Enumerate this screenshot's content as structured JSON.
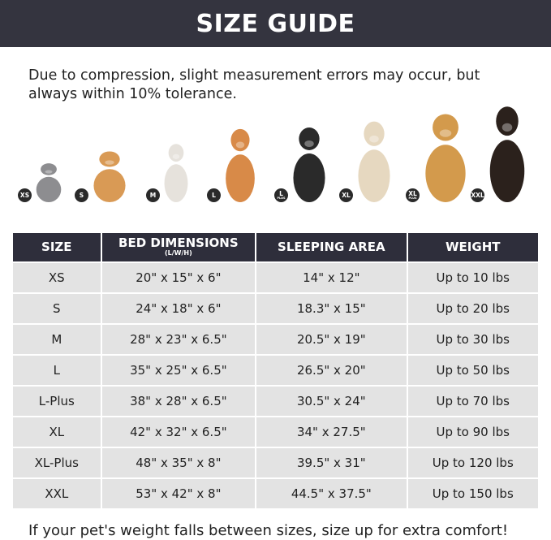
{
  "title": "SIZE GUIDE",
  "note": "Due to compression, slight measurement errors may occur, but always within 10% tolerance.",
  "pets": [
    {
      "badge": "XS",
      "sub": "",
      "animal": "cat",
      "color": "#8d8d90"
    },
    {
      "badge": "S",
      "sub": "",
      "animal": "pomeranian",
      "color": "#d99a55"
    },
    {
      "badge": "M",
      "sub": "",
      "animal": "french-bulldog",
      "color": "#e6e2dc"
    },
    {
      "badge": "L",
      "sub": "",
      "animal": "shiba-inu",
      "color": "#d88a48"
    },
    {
      "badge": "L",
      "sub": "PLUS",
      "animal": "border-collie",
      "color": "#2a2a2a"
    },
    {
      "badge": "XL",
      "sub": "",
      "animal": "labrador",
      "color": "#e6d8c0"
    },
    {
      "badge": "XL",
      "sub": "PLUS",
      "animal": "golden-retriever",
      "color": "#d39a4c"
    },
    {
      "badge": "XXL",
      "sub": "",
      "animal": "doberman",
      "color": "#2b211c"
    }
  ],
  "table": {
    "headers": [
      {
        "label": "SIZE",
        "sub": ""
      },
      {
        "label": "BED DIMENSIONS",
        "sub": "(L/W/H)"
      },
      {
        "label": "SLEEPING AREA",
        "sub": ""
      },
      {
        "label": "WEIGHT",
        "sub": ""
      }
    ],
    "rows": [
      [
        "XS",
        "20\" x 15\" x 6\"",
        "14\" x 12\"",
        "Up to 10 lbs"
      ],
      [
        "S",
        "24\" x 18\" x 6\"",
        "18.3\" x 15\"",
        "Up to 20 lbs"
      ],
      [
        "M",
        "28\" x 23\" x 6.5\"",
        "20.5\" x 19\"",
        "Up to 30 lbs"
      ],
      [
        "L",
        "35\" x 25\" x 6.5\"",
        "26.5\" x 20\"",
        "Up to 50 lbs"
      ],
      [
        "L-Plus",
        "38\" x 28\" x 6.5\"",
        "30.5\" x 24\"",
        "Up to 70 lbs"
      ],
      [
        "XL",
        "42\" x 32\" x 6.5\"",
        "34\" x 27.5\"",
        "Up to 90 lbs"
      ],
      [
        "XL-Plus",
        "48\" x 35\" x 8\"",
        "39.5\" x 31\"",
        "Up to 120 lbs"
      ],
      [
        "XXL",
        "53\" x 42\" x 8\"",
        "44.5\" x 37.5\"",
        "Up to 150 lbs"
      ]
    ]
  },
  "footer": "If your pet's weight falls between sizes, size up for extra comfort!"
}
